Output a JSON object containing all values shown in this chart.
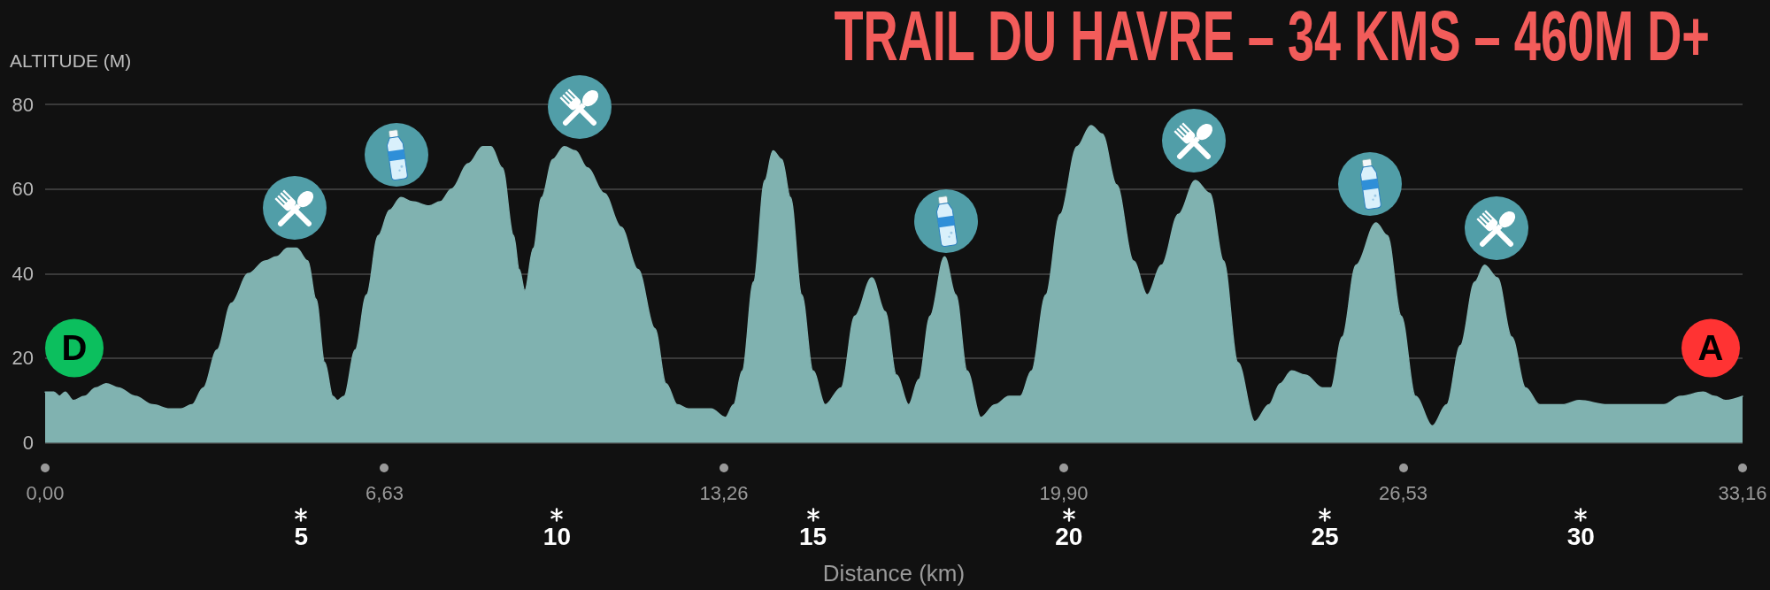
{
  "chart_data": {
    "type": "area",
    "title": "TRAIL DU HAVRE – 34 KMS – 460M D+",
    "xlabel": "Distance (km)",
    "ylabel": "ALTITUDE (M)",
    "color": "#80b2b0",
    "x": [
      0,
      0.17,
      0.28,
      0.39,
      0.55,
      0.77,
      0.99,
      1.19,
      1.43,
      1.76,
      2.1,
      2.43,
      2.65,
      2.87,
      3.09,
      3.36,
      3.64,
      3.97,
      4.3,
      4.52,
      4.74,
      4.91,
      5.13,
      5.29,
      5.46,
      5.62,
      5.71,
      5.84,
      6.06,
      6.28,
      6.51,
      6.73,
      6.95,
      7.17,
      7.5,
      7.72,
      7.94,
      8.27,
      8.55,
      8.71,
      8.93,
      9.15,
      9.26,
      9.37,
      9.54,
      9.7,
      9.92,
      10.14,
      10.36,
      10.59,
      10.92,
      11.25,
      11.58,
      11.91,
      12.13,
      12.35,
      12.57,
      12.79,
      13.01,
      13.29,
      13.45,
      13.62,
      13.84,
      14.06,
      14.22,
      14.39,
      14.56,
      14.78,
      15.0,
      15.24,
      15.55,
      15.82,
      16.15,
      16.41,
      16.63,
      16.87,
      17.07,
      17.29,
      17.57,
      17.79,
      18.01,
      18.28,
      18.56,
      18.83,
      19.05,
      19.27,
      19.55,
      19.83,
      20.16,
      20.43,
      20.65,
      20.93,
      21.26,
      21.53,
      21.81,
      22.14,
      22.47,
      22.75,
      23.02,
      23.3,
      23.63,
      23.91,
      24.13,
      24.35,
      24.62,
      24.95,
      25.12,
      25.34,
      25.61,
      26.0,
      26.22,
      26.49,
      26.77,
      27.1,
      27.38,
      27.65,
      27.93,
      28.12,
      28.37,
      28.65,
      28.92,
      29.2,
      29.64,
      29.97,
      30.52,
      31.18,
      31.62,
      31.95,
      32.39,
      32.61,
      32.83,
      33.16
    ],
    "values": [
      12,
      12,
      11,
      12,
      10,
      11,
      13,
      14,
      13,
      11,
      9,
      8,
      8,
      9,
      13,
      22,
      33,
      40,
      43,
      44,
      46,
      46,
      43,
      34,
      19,
      11,
      10,
      11,
      22,
      35,
      49,
      55,
      58,
      57,
      56,
      57,
      60,
      66,
      70,
      70,
      65,
      49,
      41,
      36,
      46,
      58,
      67,
      70,
      69,
      65,
      59,
      51,
      41,
      27,
      14,
      9,
      8,
      8,
      8,
      6,
      9,
      17,
      38,
      62,
      69,
      67,
      58,
      35,
      17,
      9,
      13,
      30,
      39,
      31,
      16,
      9,
      15,
      30,
      44,
      35,
      17,
      6,
      9,
      11,
      11,
      17,
      35,
      54,
      70,
      75,
      73,
      61,
      43,
      35,
      42,
      54,
      62,
      59,
      43,
      19,
      5,
      9,
      14,
      17,
      16,
      13,
      13,
      25,
      42,
      52,
      49,
      30,
      11,
      4,
      9,
      23,
      38,
      42,
      39,
      25,
      13,
      9,
      9,
      10,
      9,
      9,
      9,
      11,
      12,
      11,
      10,
      11
    ],
    "xlim": [
      0,
      33.16
    ],
    "ylim": [
      0,
      80
    ],
    "xticks": [
      {
        "value": 0,
        "label": "0,00"
      },
      {
        "value": 6.63,
        "label": "6,63"
      },
      {
        "value": 13.26,
        "label": "13,26"
      },
      {
        "value": 19.9,
        "label": "19,90"
      },
      {
        "value": 26.53,
        "label": "26,53"
      },
      {
        "value": 33.16,
        "label": "33,16"
      }
    ],
    "x2lim": [
      0,
      33.16
    ],
    "x2ticks": [
      5,
      10,
      15,
      20,
      25,
      30
    ],
    "yticks": [
      0,
      20,
      40,
      60,
      80
    ],
    "grid": "y",
    "annotations": [
      "D",
      "A"
    ]
  }
}
